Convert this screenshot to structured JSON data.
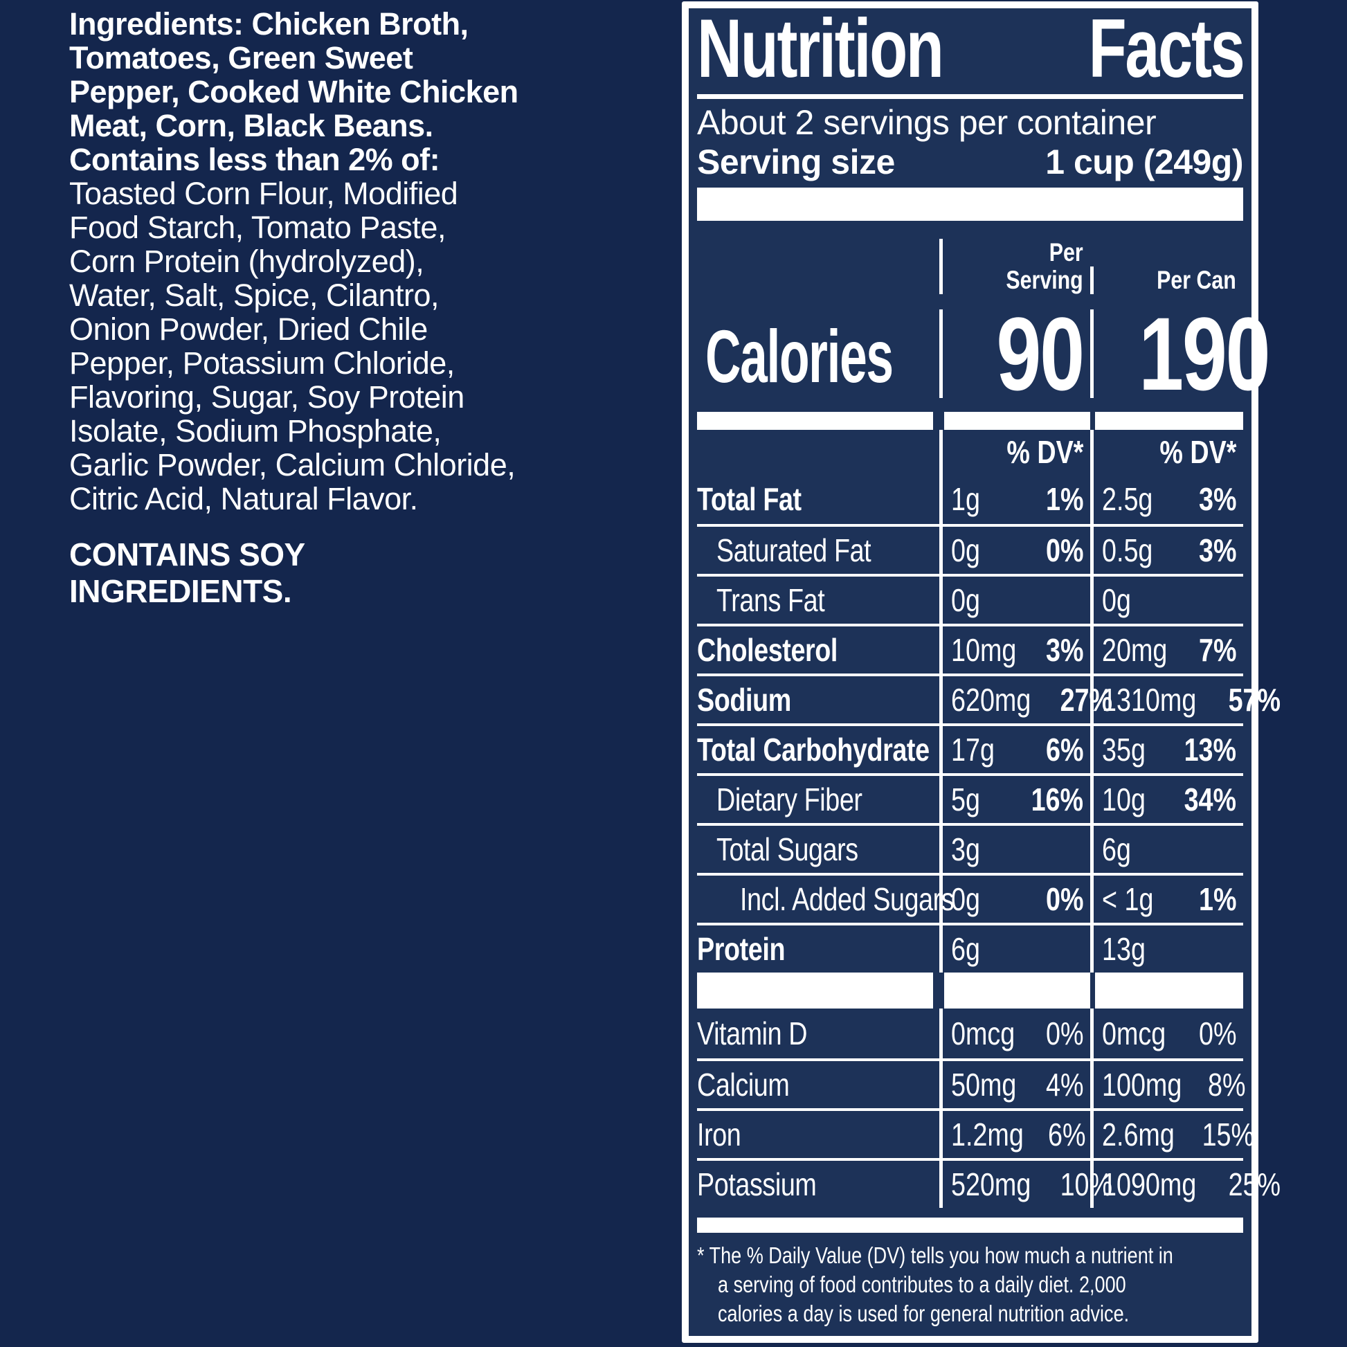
{
  "colors": {
    "background": "#14264d",
    "panel_background": "#1d3258",
    "text": "#ffffff"
  },
  "ingredients": {
    "lines": [
      {
        "text": "Ingredients: Chicken Broth,",
        "bold": true
      },
      {
        "text": "Tomatoes, Green Sweet",
        "bold": true
      },
      {
        "text": "Pepper, Cooked White Chicken",
        "bold": true
      },
      {
        "text": "Meat, Corn, Black Beans.",
        "bold": true
      },
      {
        "text": "Contains less than 2% of:",
        "bold": true
      },
      {
        "text": "Toasted Corn Flour, Modified",
        "bold": false
      },
      {
        "text": "Food Starch, Tomato Paste,",
        "bold": false
      },
      {
        "text": "Corn Protein (hydrolyzed),",
        "bold": false
      },
      {
        "text": "Water, Salt, Spice, Cilantro,",
        "bold": false
      },
      {
        "text": "Onion Powder, Dried Chile",
        "bold": false
      },
      {
        "text": "Pepper, Potassium Chloride,",
        "bold": false
      },
      {
        "text": "Flavoring, Sugar, Soy Protein",
        "bold": false
      },
      {
        "text": "Isolate, Sodium Phosphate,",
        "bold": false
      },
      {
        "text": "Garlic Powder, Calcium Chloride,",
        "bold": false
      },
      {
        "text": "Citric Acid, Natural Flavor.",
        "bold": false
      }
    ],
    "allergen_lines": [
      "CONTAINS SOY",
      "INGREDIENTS."
    ]
  },
  "panel": {
    "title_word_1": "Nutrition",
    "title_word_2": "Facts",
    "servings_per_container": "About 2 servings per container",
    "serving_size_label": "Serving size",
    "serving_size_value": "1 cup (249g)",
    "calories": {
      "label": "Calories",
      "serving_header_line_1": "Per",
      "serving_header_line_2": "Serving",
      "can_header": "Per Can",
      "per_serving": "90",
      "per_can": "190"
    },
    "dv_header_serving": "% DV*",
    "dv_header_can": "% DV*",
    "rows": [
      {
        "label": "Total Fat",
        "serving": {
          "amount": "1g",
          "dv": "1%"
        },
        "can": {
          "amount": "2.5g",
          "dv": "3%"
        }
      },
      {
        "label": "Saturated Fat",
        "serving": {
          "amount": "0g",
          "dv": "0%"
        },
        "can": {
          "amount": "0.5g",
          "dv": "3%"
        }
      },
      {
        "label": "Trans Fat",
        "serving": {
          "amount": "0g",
          "dv": ""
        },
        "can": {
          "amount": "0g",
          "dv": ""
        }
      },
      {
        "label": "Cholesterol",
        "serving": {
          "amount": "10mg",
          "dv": "3%"
        },
        "can": {
          "amount": "20mg",
          "dv": "7%"
        }
      },
      {
        "label": "Sodium",
        "serving": {
          "amount": "620mg",
          "dv": "27%"
        },
        "can": {
          "amount": "1310mg",
          "dv": "57%"
        }
      },
      {
        "label": "Total Carbohydrate",
        "serving": {
          "amount": "17g",
          "dv": "6%"
        },
        "can": {
          "amount": "35g",
          "dv": "13%"
        }
      },
      {
        "label": "Dietary Fiber",
        "serving": {
          "amount": "5g",
          "dv": "16%"
        },
        "can": {
          "amount": "10g",
          "dv": "34%"
        }
      },
      {
        "label": "Total Sugars",
        "serving": {
          "amount": "3g",
          "dv": ""
        },
        "can": {
          "amount": "6g",
          "dv": ""
        }
      },
      {
        "label": "Incl. Added Sugars",
        "serving": {
          "amount": "0g",
          "dv": "0%"
        },
        "can": {
          "amount": "< 1g",
          "dv": "1%"
        }
      },
      {
        "label": "Protein",
        "serving": {
          "amount": "6g",
          "dv": ""
        },
        "can": {
          "amount": "13g",
          "dv": ""
        }
      }
    ],
    "vitamins": [
      {
        "label": "Vitamin D",
        "serving": {
          "amount": "0mcg",
          "dv": "0%"
        },
        "can": {
          "amount": "0mcg",
          "dv": "0%"
        }
      },
      {
        "label": "Calcium",
        "serving": {
          "amount": "50mg",
          "dv": "4%"
        },
        "can": {
          "amount": "100mg",
          "dv": "8%"
        }
      },
      {
        "label": "Iron",
        "serving": {
          "amount": "1.2mg",
          "dv": "6%"
        },
        "can": {
          "amount": "2.6mg",
          "dv": "15%"
        }
      },
      {
        "label": "Potassium",
        "serving": {
          "amount": "520mg",
          "dv": "10%"
        },
        "can": {
          "amount": "1090mg",
          "dv": "25%"
        }
      }
    ],
    "footnote_lines": [
      "* The % Daily Value (DV) tells you how much a nutrient in",
      "a serving of food contributes to a daily diet. 2,000",
      "calories a day is used for general nutrition advice."
    ]
  }
}
